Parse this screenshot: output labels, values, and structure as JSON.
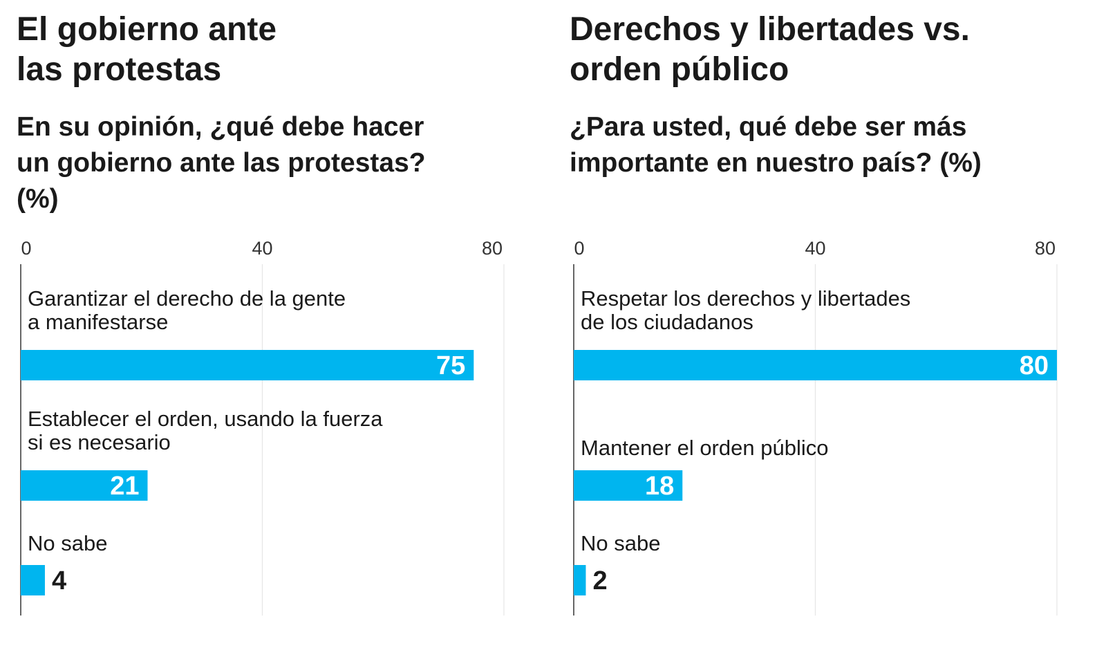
{
  "chart_data": [
    {
      "type": "bar",
      "orientation": "horizontal",
      "title": "El gobierno ante\nlas protestas",
      "subtitle": "En su opinión, ¿qué debe hacer\nun gobierno ante las protestas?\n(%)",
      "categories": [
        [
          "Garantizar el derecho de la gente",
          "a manifestarse"
        ],
        [
          "Establecer el orden, usando la fuerza",
          "si es necesario"
        ],
        [
          "No sabe"
        ]
      ],
      "values": [
        75,
        21,
        4
      ],
      "value_labels": [
        "75",
        "21",
        "4"
      ],
      "xlim": [
        0,
        80
      ],
      "ticks": [
        0,
        40,
        80
      ],
      "tick_labels": [
        "0",
        "40",
        "80"
      ],
      "grid": true,
      "bar_color": "#00b5ef"
    },
    {
      "type": "bar",
      "orientation": "horizontal",
      "title": "Derechos y libertades vs.\norden público",
      "subtitle": "¿Para usted, qué debe ser más\nimportante en nuestro país?  (%)",
      "categories": [
        [
          "Respetar los derechos y libertades",
          "de los ciudadanos"
        ],
        [
          "Mantener el orden público"
        ],
        [
          "No sabe"
        ]
      ],
      "values": [
        80,
        18,
        2
      ],
      "value_labels": [
        "80",
        "18",
        "2"
      ],
      "xlim": [
        0,
        80
      ],
      "ticks": [
        0,
        40,
        80
      ],
      "tick_labels": [
        "0",
        "40",
        "80"
      ],
      "grid": true,
      "bar_color": "#00b5ef"
    }
  ]
}
